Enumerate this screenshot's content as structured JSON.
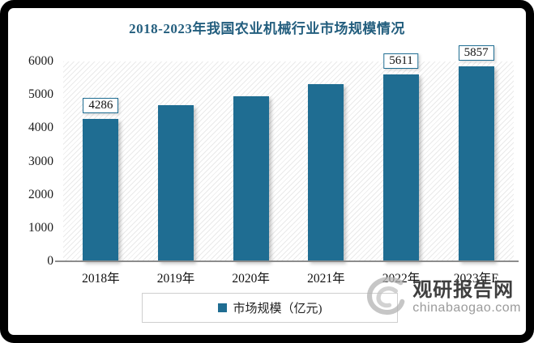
{
  "title": "2018-2023年我国农业机械行业市场规模情况",
  "colors": {
    "bar": "#1F6D92",
    "title_text": "#235E7E",
    "callout_border": "#1F6D92",
    "axis_line": "#8c8c8c",
    "legend_border": "#cfcfcf",
    "watermark_name": "#3f3f3f",
    "watermark_domain": "#9b9b9b"
  },
  "chart_data": {
    "type": "bar",
    "title": "2018-2023年我国农业机械行业市场规模情况",
    "categories": [
      "2018年",
      "2019年",
      "2020年",
      "2021年",
      "2022年",
      "2023年E"
    ],
    "values": [
      4286,
      4700,
      4950,
      5310,
      5611,
      5857
    ],
    "data_labels": [
      "4286",
      null,
      null,
      null,
      "5611",
      "5857"
    ],
    "xlabel": "",
    "ylabel": "",
    "ylim": [
      0,
      6000
    ],
    "yticks": [
      0,
      1000,
      2000,
      3000,
      4000,
      5000,
      6000
    ],
    "legend": [
      "市场规模（亿元)"
    ],
    "legend_position": "bottom",
    "grid": false,
    "plot_background": "diagonal-hatch"
  },
  "legend": {
    "label": "市场规模（亿元)"
  },
  "watermark": {
    "name": "观研报告网",
    "domain": "chinabaogao.com",
    "logo": "swirl-logo"
  }
}
